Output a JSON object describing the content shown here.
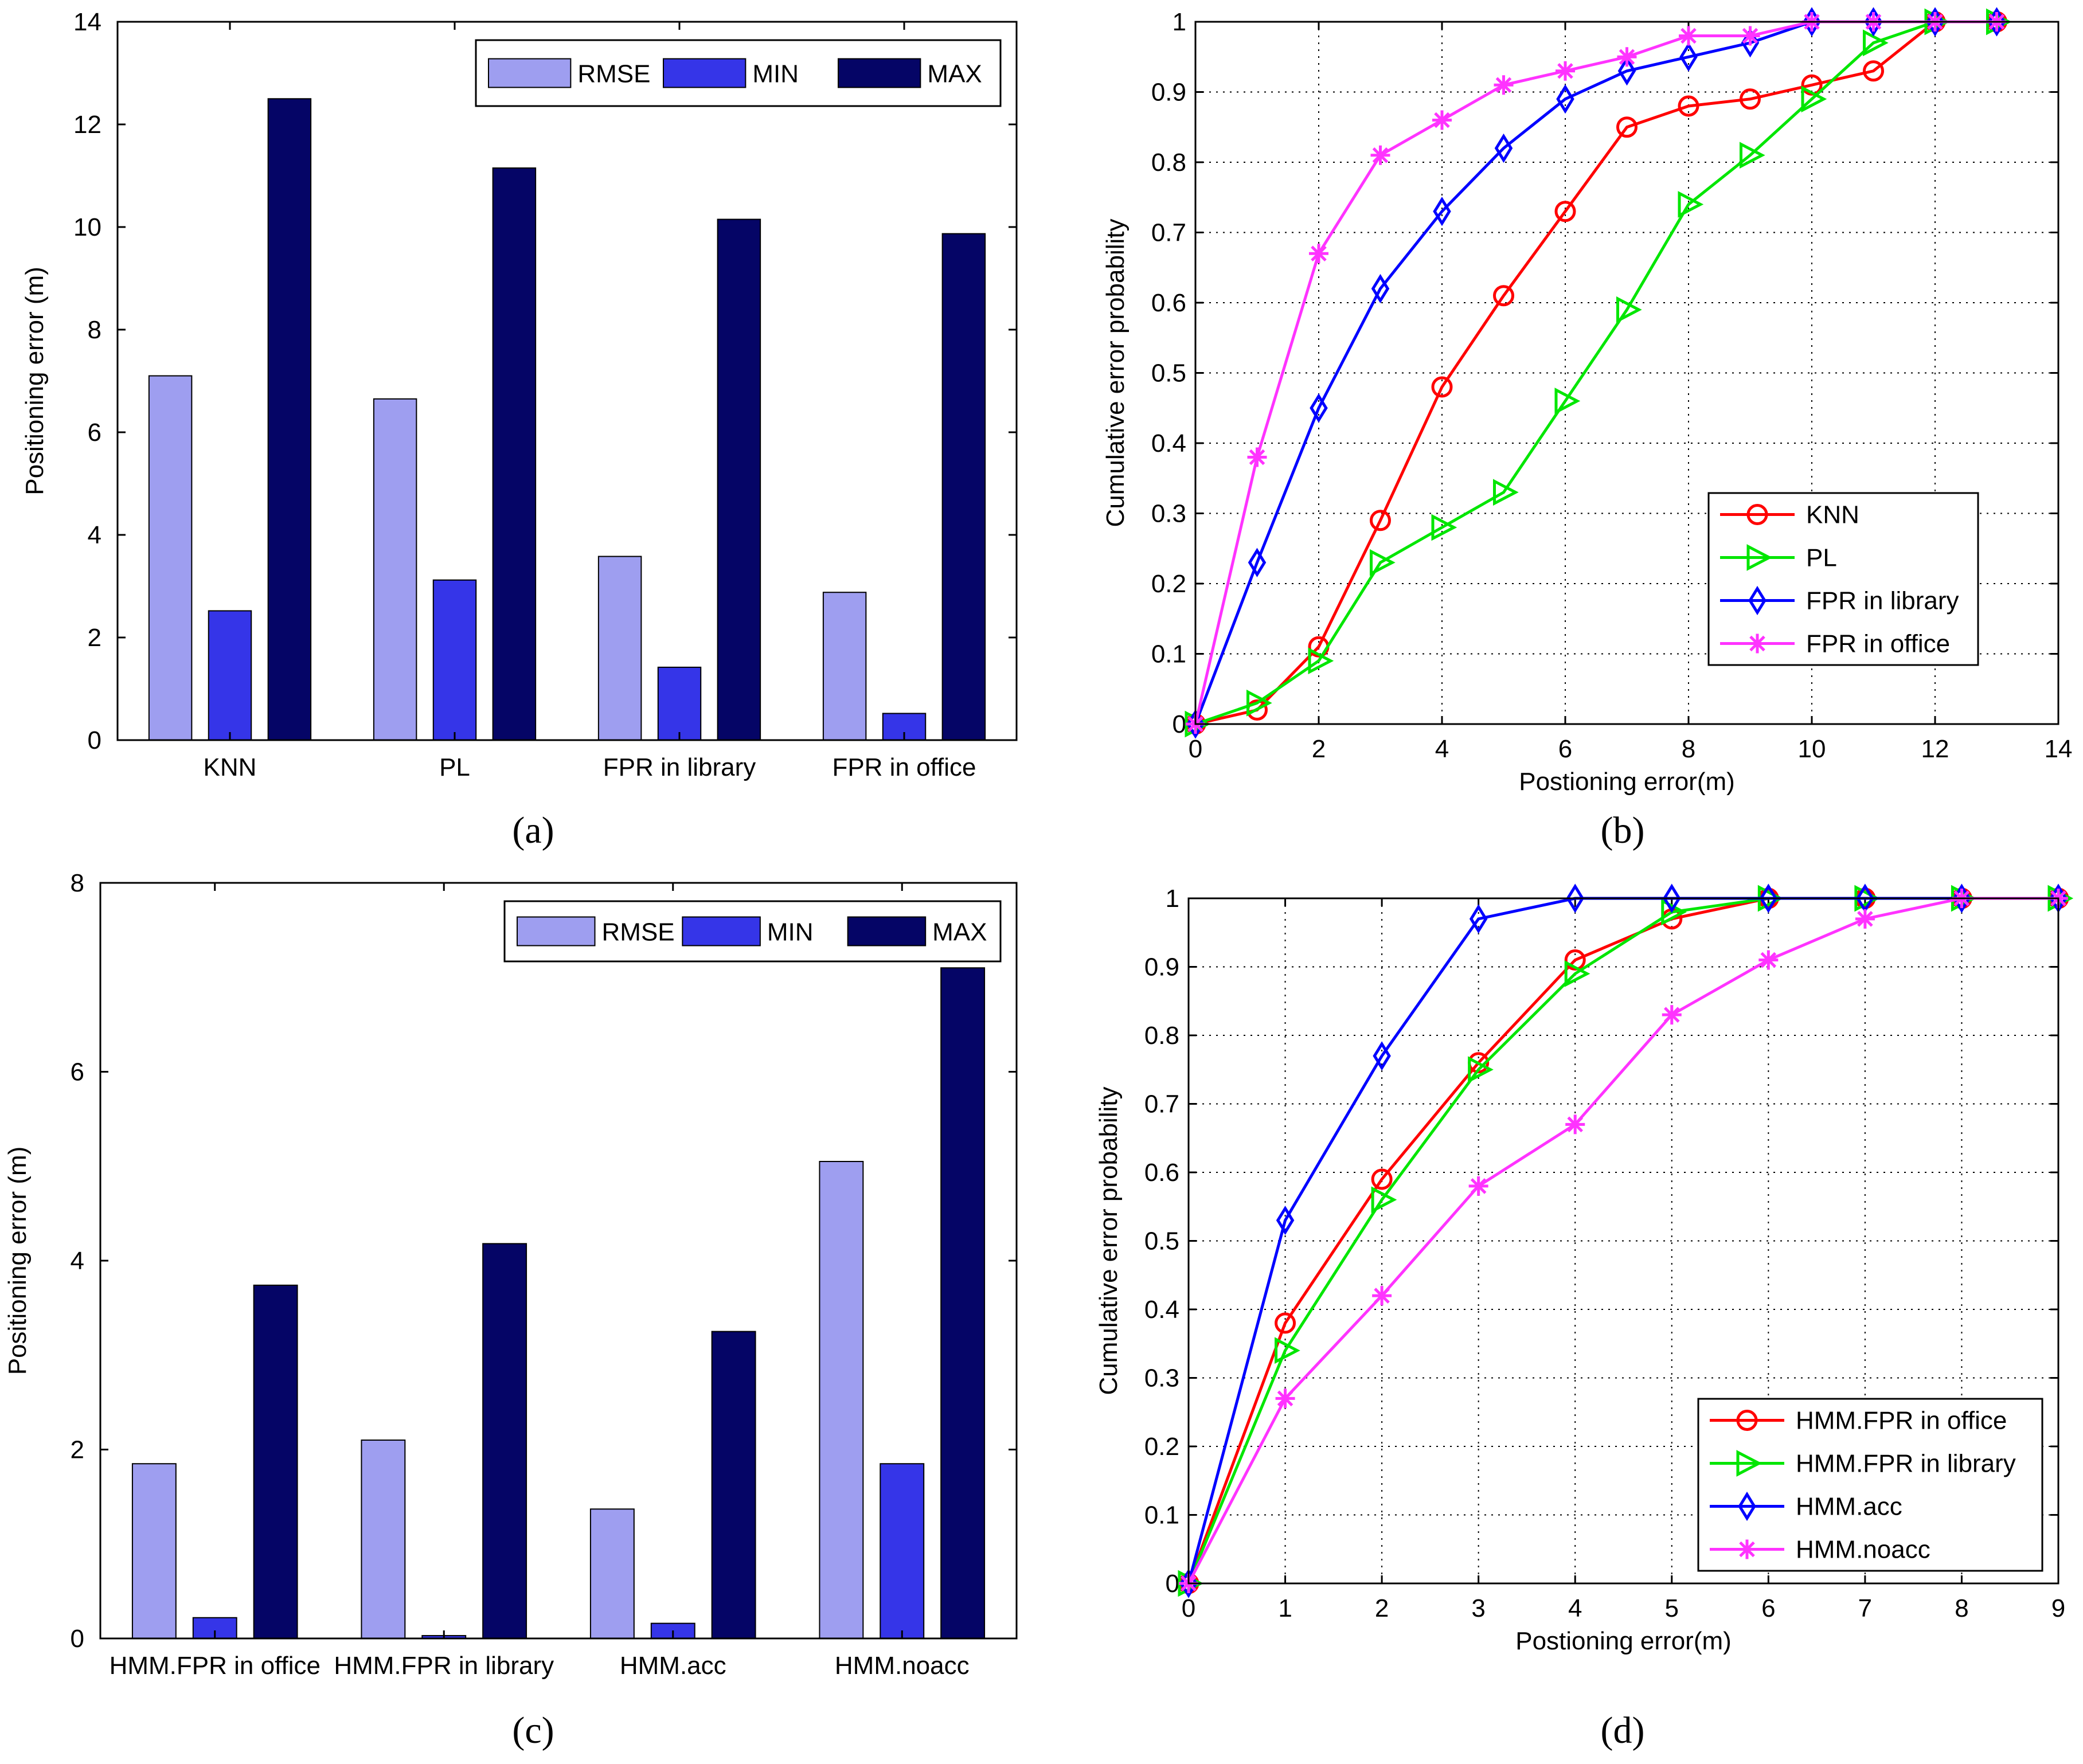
{
  "chart_data": [
    {
      "type": "bar",
      "caption": "(a)",
      "categories": [
        "KNN",
        "PL",
        "FPR in library",
        "FPR in office"
      ],
      "series": [
        {
          "name": "RMSE",
          "values": [
            7.1,
            6.65,
            3.58,
            2.88
          ]
        },
        {
          "name": "MIN",
          "values": [
            2.52,
            3.12,
            1.42,
            0.52
          ]
        },
        {
          "name": "MAX",
          "values": [
            12.5,
            11.15,
            10.15,
            9.87
          ]
        }
      ],
      "ylabel": "Positioning error (m)",
      "xlabel": "",
      "ylim": [
        0,
        14
      ],
      "yticks": [
        "0",
        "2",
        "4",
        "6",
        "8",
        "10",
        "12",
        "14"
      ],
      "legend_position": "top-right",
      "grid": false
    },
    {
      "type": "line",
      "caption": "(b)",
      "series": [
        {
          "name": "KNN",
          "x": [
            0,
            1,
            2,
            3,
            4,
            5,
            6,
            7,
            8,
            9,
            10,
            11,
            12,
            13
          ],
          "y": [
            0,
            0.02,
            0.11,
            0.29,
            0.48,
            0.61,
            0.73,
            0.85,
            0.88,
            0.89,
            0.91,
            0.93,
            1,
            1
          ]
        },
        {
          "name": "PL",
          "x": [
            0,
            1,
            2,
            3,
            4,
            5,
            6,
            7,
            8,
            9,
            10,
            11,
            12,
            13
          ],
          "y": [
            0,
            0.03,
            0.09,
            0.23,
            0.28,
            0.33,
            0.46,
            0.59,
            0.74,
            0.81,
            0.89,
            0.97,
            1,
            1
          ]
        },
        {
          "name": "FPR in library",
          "x": [
            0,
            1,
            2,
            3,
            4,
            5,
            6,
            7,
            8,
            9,
            10,
            11,
            12,
            13
          ],
          "y": [
            0,
            0.23,
            0.45,
            0.62,
            0.73,
            0.82,
            0.89,
            0.93,
            0.95,
            0.97,
            1,
            1,
            1,
            1
          ]
        },
        {
          "name": "FPR in office",
          "x": [
            0,
            1,
            2,
            3,
            4,
            5,
            6,
            7,
            8,
            9,
            10,
            11,
            12,
            13
          ],
          "y": [
            0,
            0.38,
            0.67,
            0.81,
            0.86,
            0.91,
            0.93,
            0.95,
            0.98,
            0.98,
            1,
            1,
            1,
            1
          ]
        }
      ],
      "xlabel": "Postioning error(m)",
      "ylabel": "Cumulative error probability",
      "xlim": [
        0,
        14
      ],
      "ylim": [
        0,
        1
      ],
      "xticks": [
        "0",
        "2",
        "4",
        "6",
        "8",
        "10",
        "12",
        "14"
      ],
      "yticks": [
        "0",
        "0.1",
        "0.2",
        "0.3",
        "0.4",
        "0.5",
        "0.6",
        "0.7",
        "0.8",
        "0.9",
        "1"
      ],
      "legend_position": "bottom-right",
      "grid": true
    },
    {
      "type": "bar",
      "caption": "(c)",
      "categories": [
        "HMM.FPR in office",
        "HMM.FPR in library",
        "HMM.acc",
        "HMM.noacc"
      ],
      "series": [
        {
          "name": "RMSE",
          "values": [
            1.85,
            2.1,
            1.37,
            5.05
          ]
        },
        {
          "name": "MIN",
          "values": [
            0.22,
            0.03,
            0.16,
            1.85
          ]
        },
        {
          "name": "MAX",
          "values": [
            3.74,
            4.18,
            3.25,
            7.1
          ]
        }
      ],
      "ylabel": "Positioning error (m)",
      "xlabel": "",
      "ylim": [
        0,
        8
      ],
      "yticks": [
        "0",
        "2",
        "4",
        "6",
        "8"
      ],
      "legend_position": "top-right",
      "grid": false
    },
    {
      "type": "line",
      "caption": "(d)",
      "series": [
        {
          "name": "HMM.FPR in office",
          "x": [
            0,
            1,
            2,
            3,
            4,
            5,
            6,
            7,
            8,
            9
          ],
          "y": [
            0,
            0.38,
            0.59,
            0.76,
            0.91,
            0.97,
            1,
            1,
            1,
            1
          ]
        },
        {
          "name": "HMM.FPR in library",
          "x": [
            0,
            1,
            2,
            3,
            4,
            5,
            6,
            7,
            8,
            9
          ],
          "y": [
            0,
            0.34,
            0.56,
            0.75,
            0.89,
            0.98,
            1,
            1,
            1,
            1
          ]
        },
        {
          "name": "HMM.acc",
          "x": [
            0,
            1,
            2,
            3,
            4,
            5,
            6,
            7,
            8,
            9
          ],
          "y": [
            0,
            0.53,
            0.77,
            0.97,
            1,
            1,
            1,
            1,
            1,
            1
          ]
        },
        {
          "name": "HMM.noacc",
          "x": [
            0,
            1,
            2,
            3,
            4,
            5,
            6,
            7,
            8,
            9
          ],
          "y": [
            0,
            0.27,
            0.42,
            0.58,
            0.67,
            0.83,
            0.91,
            0.97,
            1,
            1
          ]
        }
      ],
      "xlabel": "Postioning error(m)",
      "ylabel": "Cumulative error probability",
      "xlim": [
        0,
        9
      ],
      "ylim": [
        0,
        1
      ],
      "xticks": [
        "0",
        "1",
        "2",
        "3",
        "4",
        "5",
        "6",
        "7",
        "8",
        "9"
      ],
      "yticks": [
        "0",
        "0.1",
        "0.2",
        "0.3",
        "0.4",
        "0.5",
        "0.6",
        "0.7",
        "0.8",
        "0.9",
        "1"
      ],
      "legend_position": "bottom-right",
      "grid": true
    }
  ],
  "colors": {
    "RMSE": "#9e9ef0",
    "MIN": "#3535e8",
    "MAX": "#050566",
    "KNN": "#ff0000",
    "PL": "#00e600",
    "FPR in library": "#0000ff",
    "FPR in office": "#ff33ff",
    "HMM.FPR in office": "#ff0000",
    "HMM.FPR in library": "#00e600",
    "HMM.acc": "#0000ff",
    "HMM.noacc": "#ff33ff"
  },
  "markers": {
    "KNN": "circle",
    "PL": "triangle-right",
    "FPR in library": "diamond",
    "FPR in office": "star",
    "HMM.FPR in office": "circle",
    "HMM.FPR in library": "triangle-right",
    "HMM.acc": "diamond",
    "HMM.noacc": "star"
  }
}
